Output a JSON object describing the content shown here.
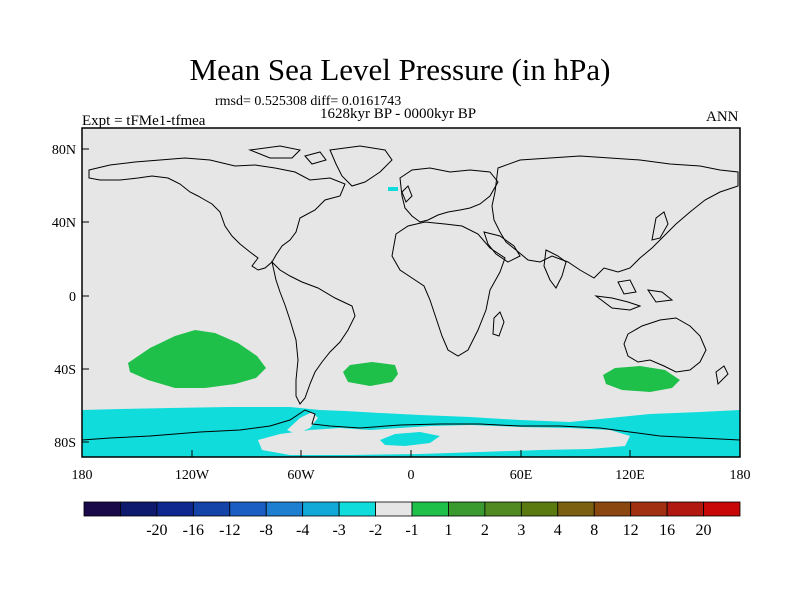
{
  "title": "Mean Sea Level Pressure (in hPa)",
  "subtitle_stats": "rmsd= 0.525308 diff= 0.0161743",
  "period": "1628kyr BP - 0000kyr BP",
  "experiment": "Expt = tFMe1-tfmea",
  "season": "ANN",
  "lat_labels": [
    "80N",
    "40N",
    "0",
    "40S",
    "80S"
  ],
  "lon_labels": [
    "180",
    "120W",
    "60W",
    "0",
    "60E",
    "120E",
    "180"
  ],
  "colorbar": {
    "colors": [
      "#1a0a4a",
      "#0e1a6e",
      "#0e2890",
      "#1444a8",
      "#1a5ec4",
      "#1e7fd0",
      "#12a8d8",
      "#10dcdc",
      "#e6e6e6",
      "#1ec04a",
      "#3a9a30",
      "#508a20",
      "#5a7a10",
      "#7a6010",
      "#8a4810",
      "#a03010",
      "#b01810",
      "#c80808"
    ],
    "labels": [
      "-20",
      "-16",
      "-12",
      "-8",
      "-4",
      "-3",
      "-2",
      "-1",
      "1",
      "2",
      "3",
      "4",
      "8",
      "12",
      "16",
      "20"
    ]
  },
  "anomaly_colors": {
    "background": "#e6e6e6",
    "positive": "#1ec04a",
    "negative": "#10dcdc",
    "coast": "#000000"
  }
}
